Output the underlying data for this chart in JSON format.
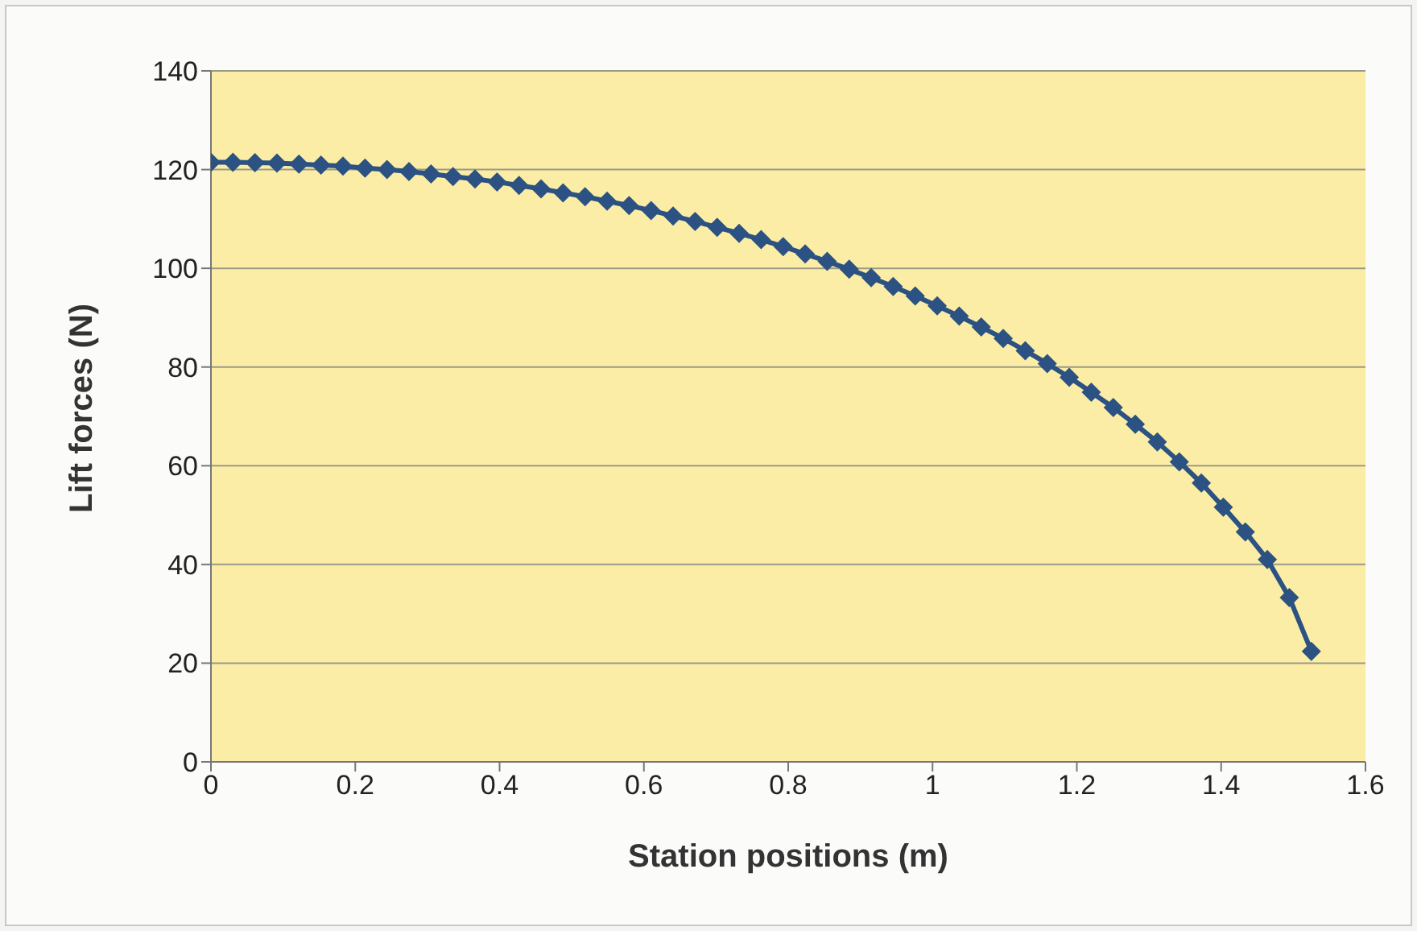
{
  "chart_data": {
    "type": "line",
    "xlabel": "Station positions (m)",
    "ylabel": "Lift forces (N)",
    "x": [
      0,
      0.0305,
      0.061,
      0.0915,
      0.122,
      0.1525,
      0.183,
      0.2135,
      0.244,
      0.2745,
      0.305,
      0.3355,
      0.366,
      0.3965,
      0.427,
      0.4575,
      0.488,
      0.5185,
      0.549,
      0.5795,
      0.61,
      0.6405,
      0.671,
      0.7015,
      0.732,
      0.7625,
      0.793,
      0.8235,
      0.854,
      0.8845,
      0.915,
      0.9455,
      0.976,
      1.0065,
      1.037,
      1.0675,
      1.098,
      1.1285,
      1.159,
      1.1895,
      1.22,
      1.2505,
      1.281,
      1.3115,
      1.342,
      1.3725,
      1.403,
      1.4335,
      1.464,
      1.4945,
      1.525
    ],
    "series": [
      {
        "color": "#2b5282",
        "values": [
          121.5,
          121.5,
          121.4,
          121.3,
          121.1,
          120.9,
          120.7,
          120.3,
          120.0,
          119.6,
          119.1,
          118.6,
          118.1,
          117.5,
          116.8,
          116.1,
          115.3,
          114.5,
          113.6,
          112.7,
          111.7,
          110.6,
          109.5,
          108.3,
          107.1,
          105.8,
          104.4,
          102.9,
          101.4,
          99.8,
          98.1,
          96.3,
          94.4,
          92.4,
          90.3,
          88.1,
          85.8,
          83.3,
          80.7,
          77.9,
          74.9,
          71.8,
          68.4,
          64.8,
          60.8,
          56.5,
          51.6,
          46.6,
          41,
          33.3,
          22.4
        ]
      }
    ],
    "xlim": [
      0,
      1.6
    ],
    "xticks": [
      0,
      0.2,
      0.4,
      0.6,
      0.8,
      1,
      1.2,
      1.4,
      1.6
    ],
    "ylim": [
      0,
      140
    ],
    "yticks": [
      0,
      20,
      40,
      60,
      80,
      100,
      120,
      140
    ],
    "grid": "y",
    "legend": false,
    "marker": "diamond",
    "line_style": "solid"
  }
}
